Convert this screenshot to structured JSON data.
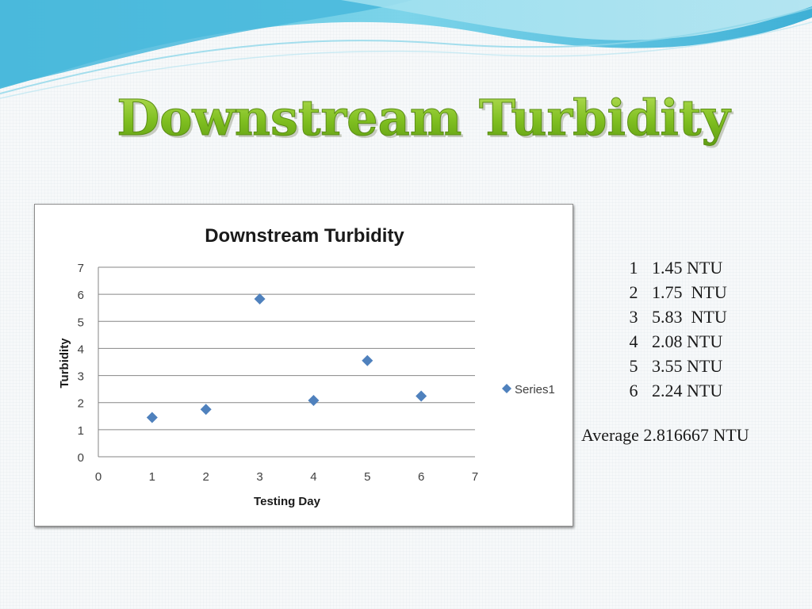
{
  "slide": {
    "title": "Downstream Turbidity",
    "title_color": "#7fbf20"
  },
  "chart_data": {
    "type": "scatter",
    "title": "Downstream Turbidity",
    "xlabel": "Testing Day",
    "ylabel": "Turbidity",
    "xlim": [
      0,
      7
    ],
    "ylim": [
      0,
      7
    ],
    "xticks": [
      "0",
      "1",
      "2",
      "3",
      "4",
      "5",
      "6",
      "7"
    ],
    "yticks": [
      "0",
      "1",
      "2",
      "3",
      "4",
      "5",
      "6",
      "7"
    ],
    "grid": "horizontal",
    "legend_position": "right",
    "series": [
      {
        "name": "Series1",
        "color": "#4f81bd",
        "marker": "diamond",
        "points": [
          {
            "x": 1,
            "y": 1.45
          },
          {
            "x": 2,
            "y": 1.75
          },
          {
            "x": 3,
            "y": 5.83
          },
          {
            "x": 4,
            "y": 2.08
          },
          {
            "x": 5,
            "y": 3.55
          },
          {
            "x": 6,
            "y": 2.24
          }
        ]
      }
    ]
  },
  "readings": [
    {
      "day": "1",
      "value": "1.45 NTU"
    },
    {
      "day": "2",
      "value": "1.75  NTU"
    },
    {
      "day": "3",
      "value": "5.83  NTU"
    },
    {
      "day": "4",
      "value": "2.08 NTU"
    },
    {
      "day": "5",
      "value": "3.55 NTU"
    },
    {
      "day": "6",
      "value": "2.24 NTU"
    }
  ],
  "average": "Average 2.816667 NTU"
}
